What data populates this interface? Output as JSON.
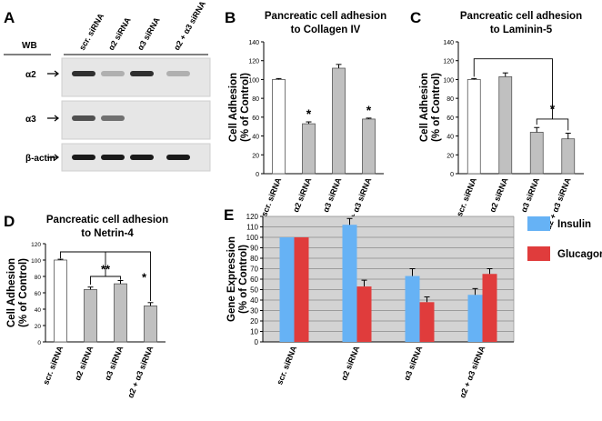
{
  "figure_panels": {
    "A": {
      "label": "A",
      "wb_label": "WB",
      "lanes": [
        "scr. siRNA",
        "α2 siRNA",
        "α3 siRNA",
        "α2 + α3 siRNA"
      ],
      "blots": [
        {
          "name": "α2",
          "band_intensity": [
            0.85,
            0.25,
            0.85,
            0.25
          ]
        },
        {
          "name": "α3",
          "band_intensity": [
            0.7,
            0.55,
            0.0,
            0.0
          ]
        },
        {
          "name": "β-actin",
          "band_intensity": [
            0.95,
            0.95,
            0.95,
            0.95
          ]
        }
      ]
    },
    "E_legend": [
      {
        "name": "Insulin",
        "color": "#66b2f5"
      },
      {
        "name": "Glucagon",
        "color": "#e03c3c"
      }
    ]
  },
  "chart_data": [
    {
      "panel": "B",
      "type": "bar",
      "title": "Pancreatic cell adhesion to Collagen IV",
      "title_lines": [
        "Pancreatic cell adhesion",
        "to Collagen IV"
      ],
      "ylabel_lines": [
        "Cell Adhesion",
        "(% of Control)"
      ],
      "categories": [
        "scr. siRNA",
        "α2 siRNA",
        "α3 siRNA",
        "α2 + α3 siRNA"
      ],
      "values": [
        100,
        53,
        112,
        58
      ],
      "errors": [
        1,
        2,
        4,
        1
      ],
      "bar_colors": [
        "#ffffff",
        "#c0c0c0",
        "#c0c0c0",
        "#c0c0c0"
      ],
      "annotations": [
        "",
        "*",
        "",
        "*"
      ],
      "ylim": [
        0,
        140
      ],
      "yticks": [
        0,
        20,
        40,
        60,
        80,
        100,
        120,
        140
      ]
    },
    {
      "panel": "C",
      "type": "bar",
      "title": "Pancreatic cell adhesion to Laminin-5",
      "title_lines": [
        "Pancreatic cell adhesion",
        "to Laminin-5"
      ],
      "ylabel_lines": [
        "Cell Adhesion",
        "(% of Control)"
      ],
      "categories": [
        "scr. siRNA",
        "α2 siRNA",
        "α3 siRNA",
        "α2 + α3 siRNA"
      ],
      "values": [
        100,
        103,
        44,
        37
      ],
      "errors": [
        1,
        4,
        5,
        6
      ],
      "bar_colors": [
        "#ffffff",
        "#c0c0c0",
        "#c0c0c0",
        "#c0c0c0"
      ],
      "significance": [
        {
          "from": 0,
          "to_group": [
            2,
            3
          ],
          "label": "*"
        }
      ],
      "ylim": [
        0,
        140
      ],
      "yticks": [
        0,
        20,
        40,
        60,
        80,
        100,
        120,
        140
      ]
    },
    {
      "panel": "D",
      "type": "bar",
      "title": "Pancreatic cell adhesion to Netrin-4",
      "title_lines": [
        "Pancreatic cell adhesion",
        "to Netrin-4"
      ],
      "ylabel_lines": [
        "Cell Adhesion",
        "(% of Control)"
      ],
      "categories": [
        "scr. siRNA",
        "α2 siRNA",
        "α3 siRNA",
        "α2 + α3 siRNA"
      ],
      "values": [
        100,
        64,
        71,
        44
      ],
      "errors": [
        1,
        3,
        4,
        4
      ],
      "bar_colors": [
        "#ffffff",
        "#c0c0c0",
        "#c0c0c0",
        "#c0c0c0"
      ],
      "significance": [
        {
          "between": [
            1,
            2
          ],
          "label": "**"
        },
        {
          "between": [
            0,
            3
          ],
          "label": "*"
        }
      ],
      "ylim": [
        0,
        120
      ],
      "yticks": [
        0,
        20,
        40,
        60,
        80,
        100,
        120
      ]
    },
    {
      "panel": "E",
      "type": "bar",
      "title": "",
      "ylabel_lines": [
        "Gene Expression",
        "(% of Control)"
      ],
      "categories": [
        "scr. siRNA",
        "α2 siRNA",
        "α3 siRNA",
        "α2 + α3 siRNA"
      ],
      "series": [
        {
          "name": "Insulin",
          "values": [
            100,
            112,
            63,
            45
          ],
          "errors": [
            0,
            6,
            7,
            6
          ],
          "color": "#66b2f5"
        },
        {
          "name": "Glucagon",
          "values": [
            100,
            53,
            38,
            65
          ],
          "errors": [
            0,
            6,
            5,
            5
          ],
          "color": "#e03c3c"
        }
      ],
      "ylim": [
        0,
        120
      ],
      "yticks": [
        0,
        10,
        20,
        30,
        40,
        50,
        60,
        70,
        80,
        90,
        100,
        110,
        120
      ],
      "grid": true,
      "legend": "right"
    }
  ]
}
